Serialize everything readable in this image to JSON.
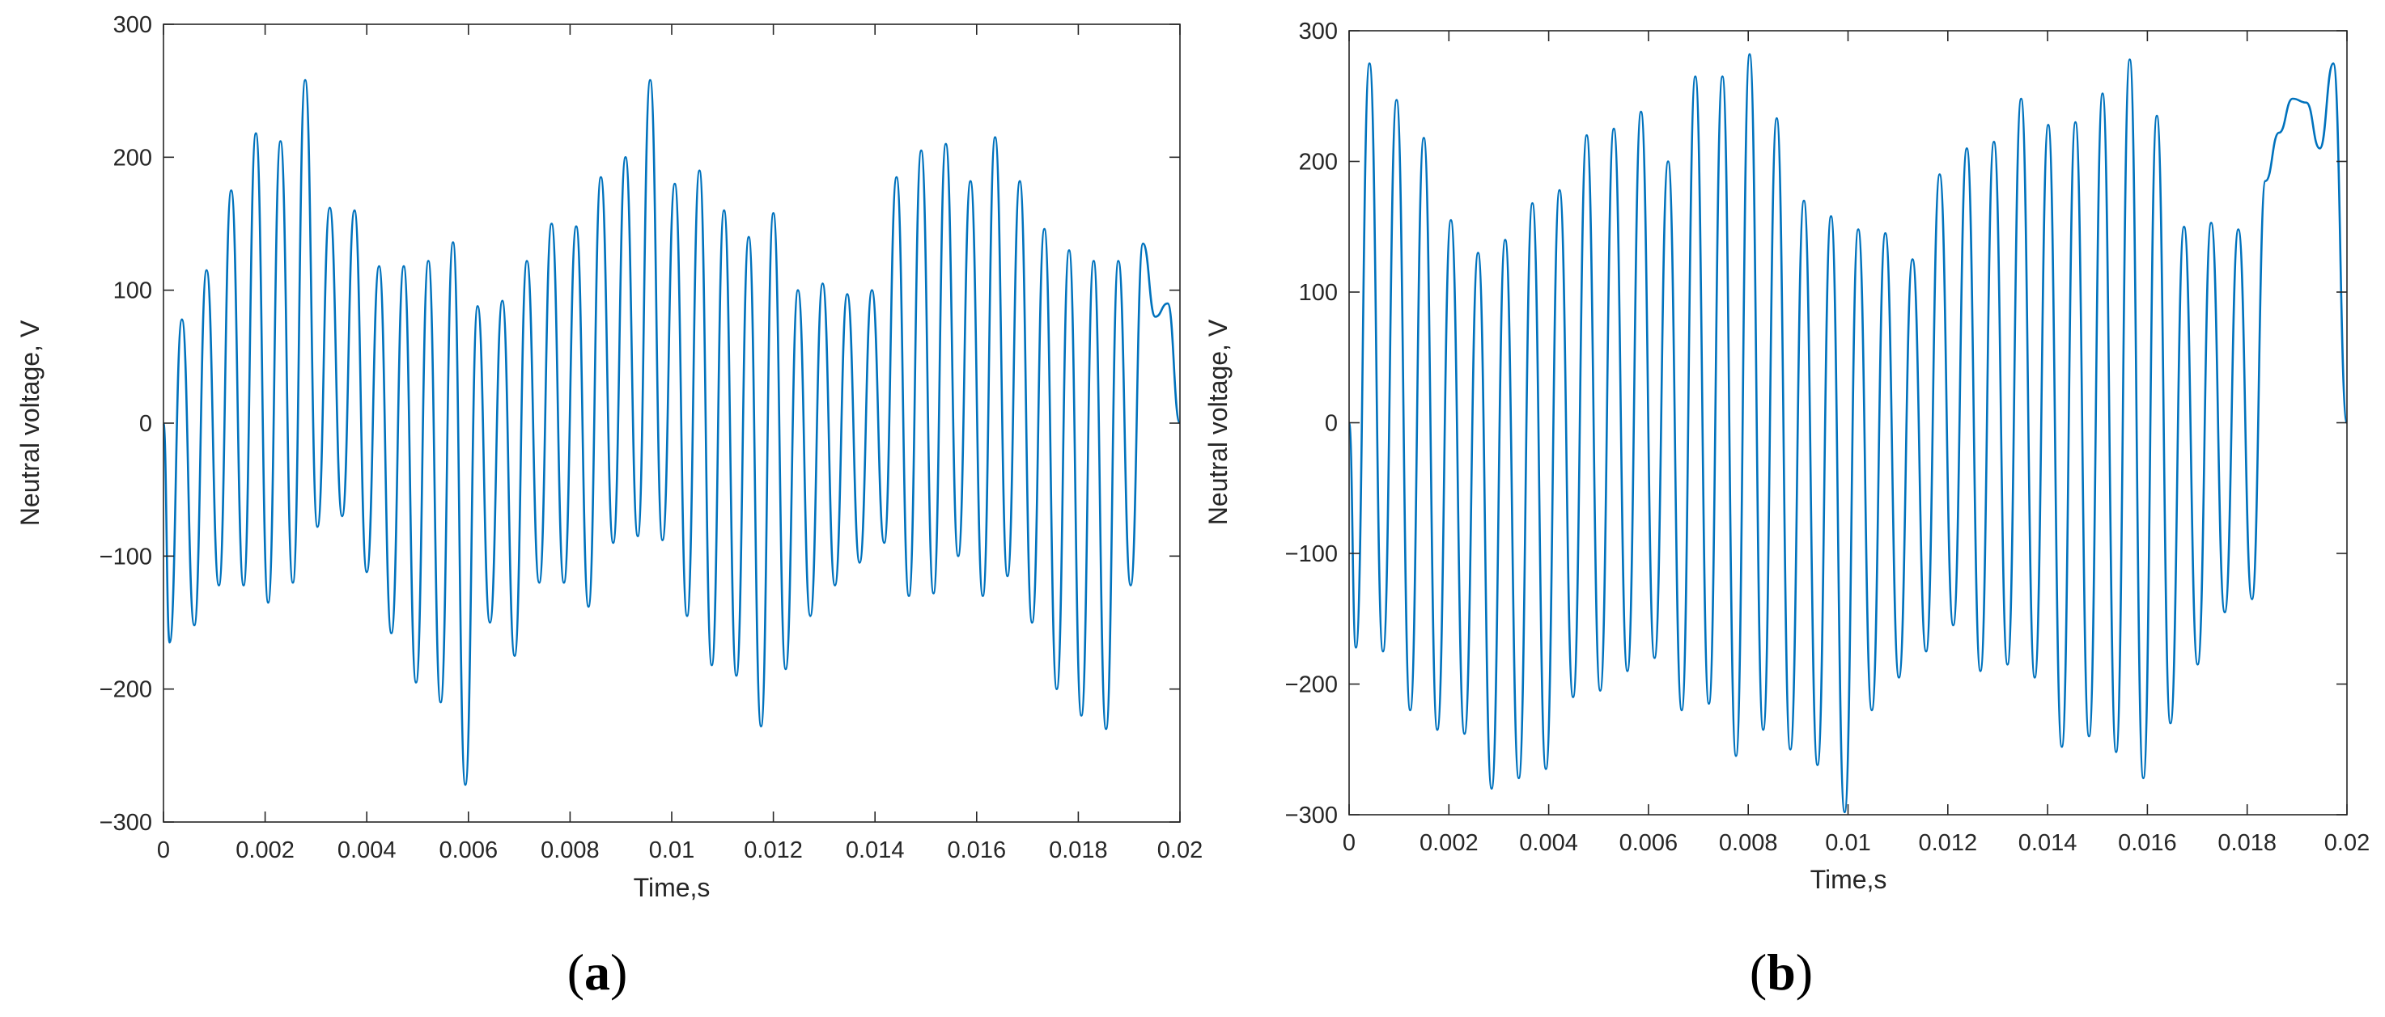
{
  "chart_data": [
    {
      "type": "line",
      "panel_label": "a",
      "xlabel": "Time,s",
      "ylabel": "Neutral voltage, V",
      "xlim": [
        0,
        0.02
      ],
      "ylim": [
        -300,
        300
      ],
      "xticks": [
        0,
        0.002,
        0.004,
        0.006,
        0.008,
        0.01,
        0.012,
        0.014,
        0.016,
        0.018,
        0.02
      ],
      "xtick_labels": [
        "0",
        "0.002",
        "0.004",
        "0.006",
        "0.008",
        "0.01",
        "0.012",
        "0.014",
        "0.016",
        "0.018",
        "0.02"
      ],
      "yticks": [
        -300,
        -200,
        -100,
        0,
        100,
        200,
        300
      ],
      "ytick_labels": [
        "−300",
        "−200",
        "−100",
        "0",
        "100",
        "200",
        "300"
      ],
      "grid": false,
      "series": [
        {
          "color": "#0072BD",
          "peaks": [
            78,
            115,
            175,
            218,
            212,
            258,
            162,
            160,
            118,
            118,
            122,
            136,
            88,
            92,
            122,
            150,
            148,
            185,
            200,
            258,
            180,
            190,
            160,
            140,
            158,
            100,
            105,
            97,
            100,
            185,
            205,
            210,
            182,
            215,
            182,
            146,
            130,
            122,
            122,
            135,
            80,
            90
          ],
          "troughs": [
            -165,
            -152,
            -122,
            -122,
            -135,
            -120,
            -78,
            -70,
            -112,
            -158,
            -195,
            -210,
            -272,
            -150,
            -175,
            -120,
            -120,
            -138,
            -90,
            -85,
            -88,
            -145,
            -182,
            -190,
            -228,
            -185,
            -145,
            -122,
            -105,
            -90,
            -130,
            -128,
            -100,
            -130,
            -115,
            -150,
            -200,
            -220,
            -230,
            -122
          ]
        }
      ]
    },
    {
      "type": "line",
      "panel_label": "b",
      "xlabel": "Time,s",
      "ylabel": "Neutral voltage, V",
      "xlim": [
        0,
        0.02
      ],
      "ylim": [
        -300,
        300
      ],
      "xticks": [
        0,
        0.002,
        0.004,
        0.006,
        0.008,
        0.01,
        0.012,
        0.014,
        0.016,
        0.018,
        0.02
      ],
      "xtick_labels": [
        "0",
        "0.002",
        "0.004",
        "0.006",
        "0.008",
        "0.01",
        "0.012",
        "0.014",
        "0.016",
        "0.018",
        "0.02"
      ],
      "yticks": [
        -300,
        -200,
        -100,
        0,
        100,
        200,
        300
      ],
      "ytick_labels": [
        "−300",
        "−200",
        "−100",
        "0",
        "100",
        "200",
        "300"
      ],
      "grid": false,
      "series": [
        {
          "color": "#0072BD",
          "peaks": [
            275,
            247,
            218,
            155,
            130,
            140,
            168,
            178,
            220,
            225,
            238,
            200,
            265,
            265,
            282,
            233,
            170,
            158,
            148,
            145,
            125,
            190,
            210,
            215,
            248,
            228,
            230,
            252,
            278,
            235,
            150,
            153,
            148,
            185,
            222,
            248,
            245,
            210,
            275
          ],
          "troughs": [
            -172,
            -175,
            -220,
            -235,
            -238,
            -280,
            -272,
            -265,
            -210,
            -205,
            -190,
            -180,
            -220,
            -215,
            -255,
            -235,
            -250,
            -262,
            -298,
            -220,
            -195,
            -175,
            -155,
            -190,
            -185,
            -195,
            -248,
            -240,
            -252,
            -272,
            -230,
            -185,
            -145,
            -135
          ]
        }
      ]
    }
  ]
}
